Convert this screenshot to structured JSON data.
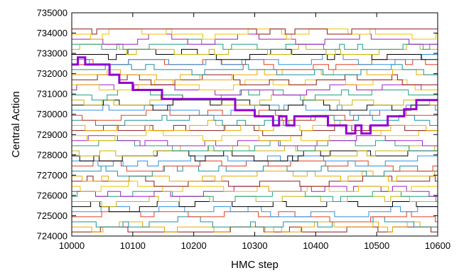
{
  "chart_data": {
    "type": "line",
    "title": "",
    "xlabel": "HMC step",
    "ylabel": "Central Action",
    "xlim": [
      10000,
      10600
    ],
    "ylim": [
      724000,
      735000
    ],
    "x_ticks": [
      10000,
      10100,
      10200,
      10300,
      10400,
      10500,
      10600
    ],
    "y_ticks": [
      724000,
      725000,
      726000,
      727000,
      728000,
      729000,
      730000,
      731000,
      732000,
      733000,
      734000,
      735000
    ],
    "x_tick_labels": [
      "10000",
      "10100",
      "10200",
      "10300",
      "10400",
      "10500",
      "10600"
    ],
    "y_tick_labels": [
      "724000",
      "725000",
      "726000",
      "727000",
      "728000",
      "729000",
      "730000",
      "731000",
      "732000",
      "733000",
      "734000",
      "735000"
    ],
    "grid": false,
    "legend": "none",
    "levels": [
      724200,
      724450,
      724700,
      724950,
      725200,
      725450,
      725700,
      725950,
      726200,
      726450,
      726700,
      726950,
      727200,
      727450,
      727700,
      727950,
      728200,
      728450,
      728700,
      728950,
      729200,
      729450,
      729700,
      729950,
      730200,
      730450,
      730700,
      730950,
      731200,
      731450,
      731700,
      731950,
      732200,
      732450,
      732700,
      732950,
      733200,
      733450,
      733700,
      733950,
      734200
    ],
    "highlighted_series": {
      "color": "#9400d3",
      "points": [
        [
          10000,
          732450
        ],
        [
          10010,
          732450
        ],
        [
          10010,
          732800
        ],
        [
          10022,
          732800
        ],
        [
          10022,
          732450
        ],
        [
          10062,
          732450
        ],
        [
          10062,
          731950
        ],
        [
          10078,
          731950
        ],
        [
          10078,
          731550
        ],
        [
          10100,
          731550
        ],
        [
          10100,
          731200
        ],
        [
          10148,
          731200
        ],
        [
          10148,
          730750
        ],
        [
          10268,
          730750
        ],
        [
          10268,
          730200
        ],
        [
          10300,
          730200
        ],
        [
          10300,
          729900
        ],
        [
          10330,
          729900
        ],
        [
          10330,
          729450
        ],
        [
          10340,
          729450
        ],
        [
          10340,
          729900
        ],
        [
          10352,
          729900
        ],
        [
          10352,
          729450
        ],
        [
          10365,
          729450
        ],
        [
          10365,
          729900
        ],
        [
          10420,
          729900
        ],
        [
          10420,
          729450
        ],
        [
          10450,
          729450
        ],
        [
          10450,
          729050
        ],
        [
          10465,
          729050
        ],
        [
          10465,
          729450
        ],
        [
          10475,
          729450
        ],
        [
          10475,
          729050
        ],
        [
          10490,
          729050
        ],
        [
          10490,
          729450
        ],
        [
          10518,
          729450
        ],
        [
          10518,
          729900
        ],
        [
          10545,
          729900
        ],
        [
          10545,
          730250
        ],
        [
          10565,
          730250
        ],
        [
          10565,
          730700
        ],
        [
          10600,
          730700
        ]
      ]
    },
    "series_colors": [
      "#8b1a1a",
      "#e8a800",
      "#1a8fa0",
      "#e04020",
      "#3090e0",
      "#000000",
      "#c8b400",
      "#20a080",
      "#a020c0",
      "#f0c000"
    ]
  },
  "colors": {
    "axis": "#000000",
    "background": "#ffffff"
  }
}
